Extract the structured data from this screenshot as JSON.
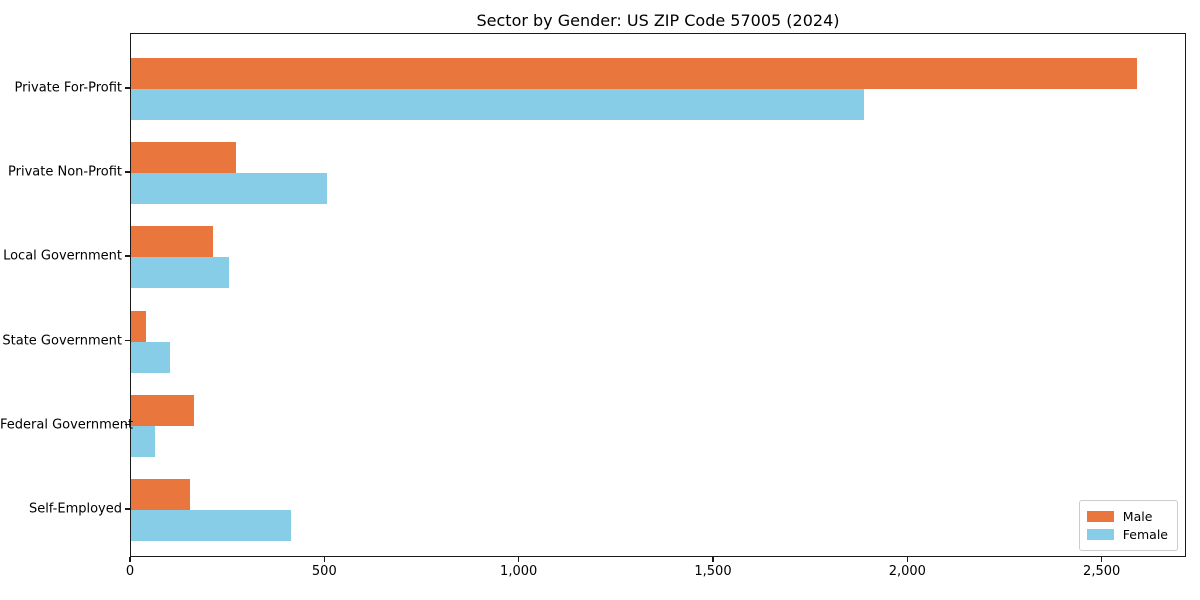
{
  "title": "Sector by Gender: US ZIP Code 57005 (2024)",
  "colors": {
    "male": "#E8763D",
    "female": "#87CDE8",
    "spine": "#1a1a1a",
    "legend_border": "#cccccc",
    "background": "#ffffff"
  },
  "chart_data": {
    "type": "bar",
    "orientation": "horizontal",
    "title": "Sector by Gender: US ZIP Code 57005 (2024)",
    "categories": [
      "Private For-Profit",
      "Private Non-Profit",
      "Local Government",
      "State Government",
      "Federal Government",
      "Self-Employed"
    ],
    "series": [
      {
        "name": "Male",
        "color": "#E8763D",
        "values": [
          2588,
          271,
          211,
          38,
          162,
          152
        ]
      },
      {
        "name": "Female",
        "color": "#87CDE8",
        "values": [
          1886,
          505,
          251,
          101,
          63,
          411
        ]
      }
    ],
    "xlabel": "",
    "ylabel": "",
    "xlim": [
      0,
      2717
    ],
    "xticks": [
      0,
      500,
      1000,
      1500,
      2000,
      2500
    ],
    "xtick_labels": [
      "0",
      "500",
      "1,000",
      "1,500",
      "2,000",
      "2,500"
    ],
    "grid": false,
    "legend_position": "lower right",
    "legend_labels": [
      "Male",
      "Female"
    ]
  }
}
